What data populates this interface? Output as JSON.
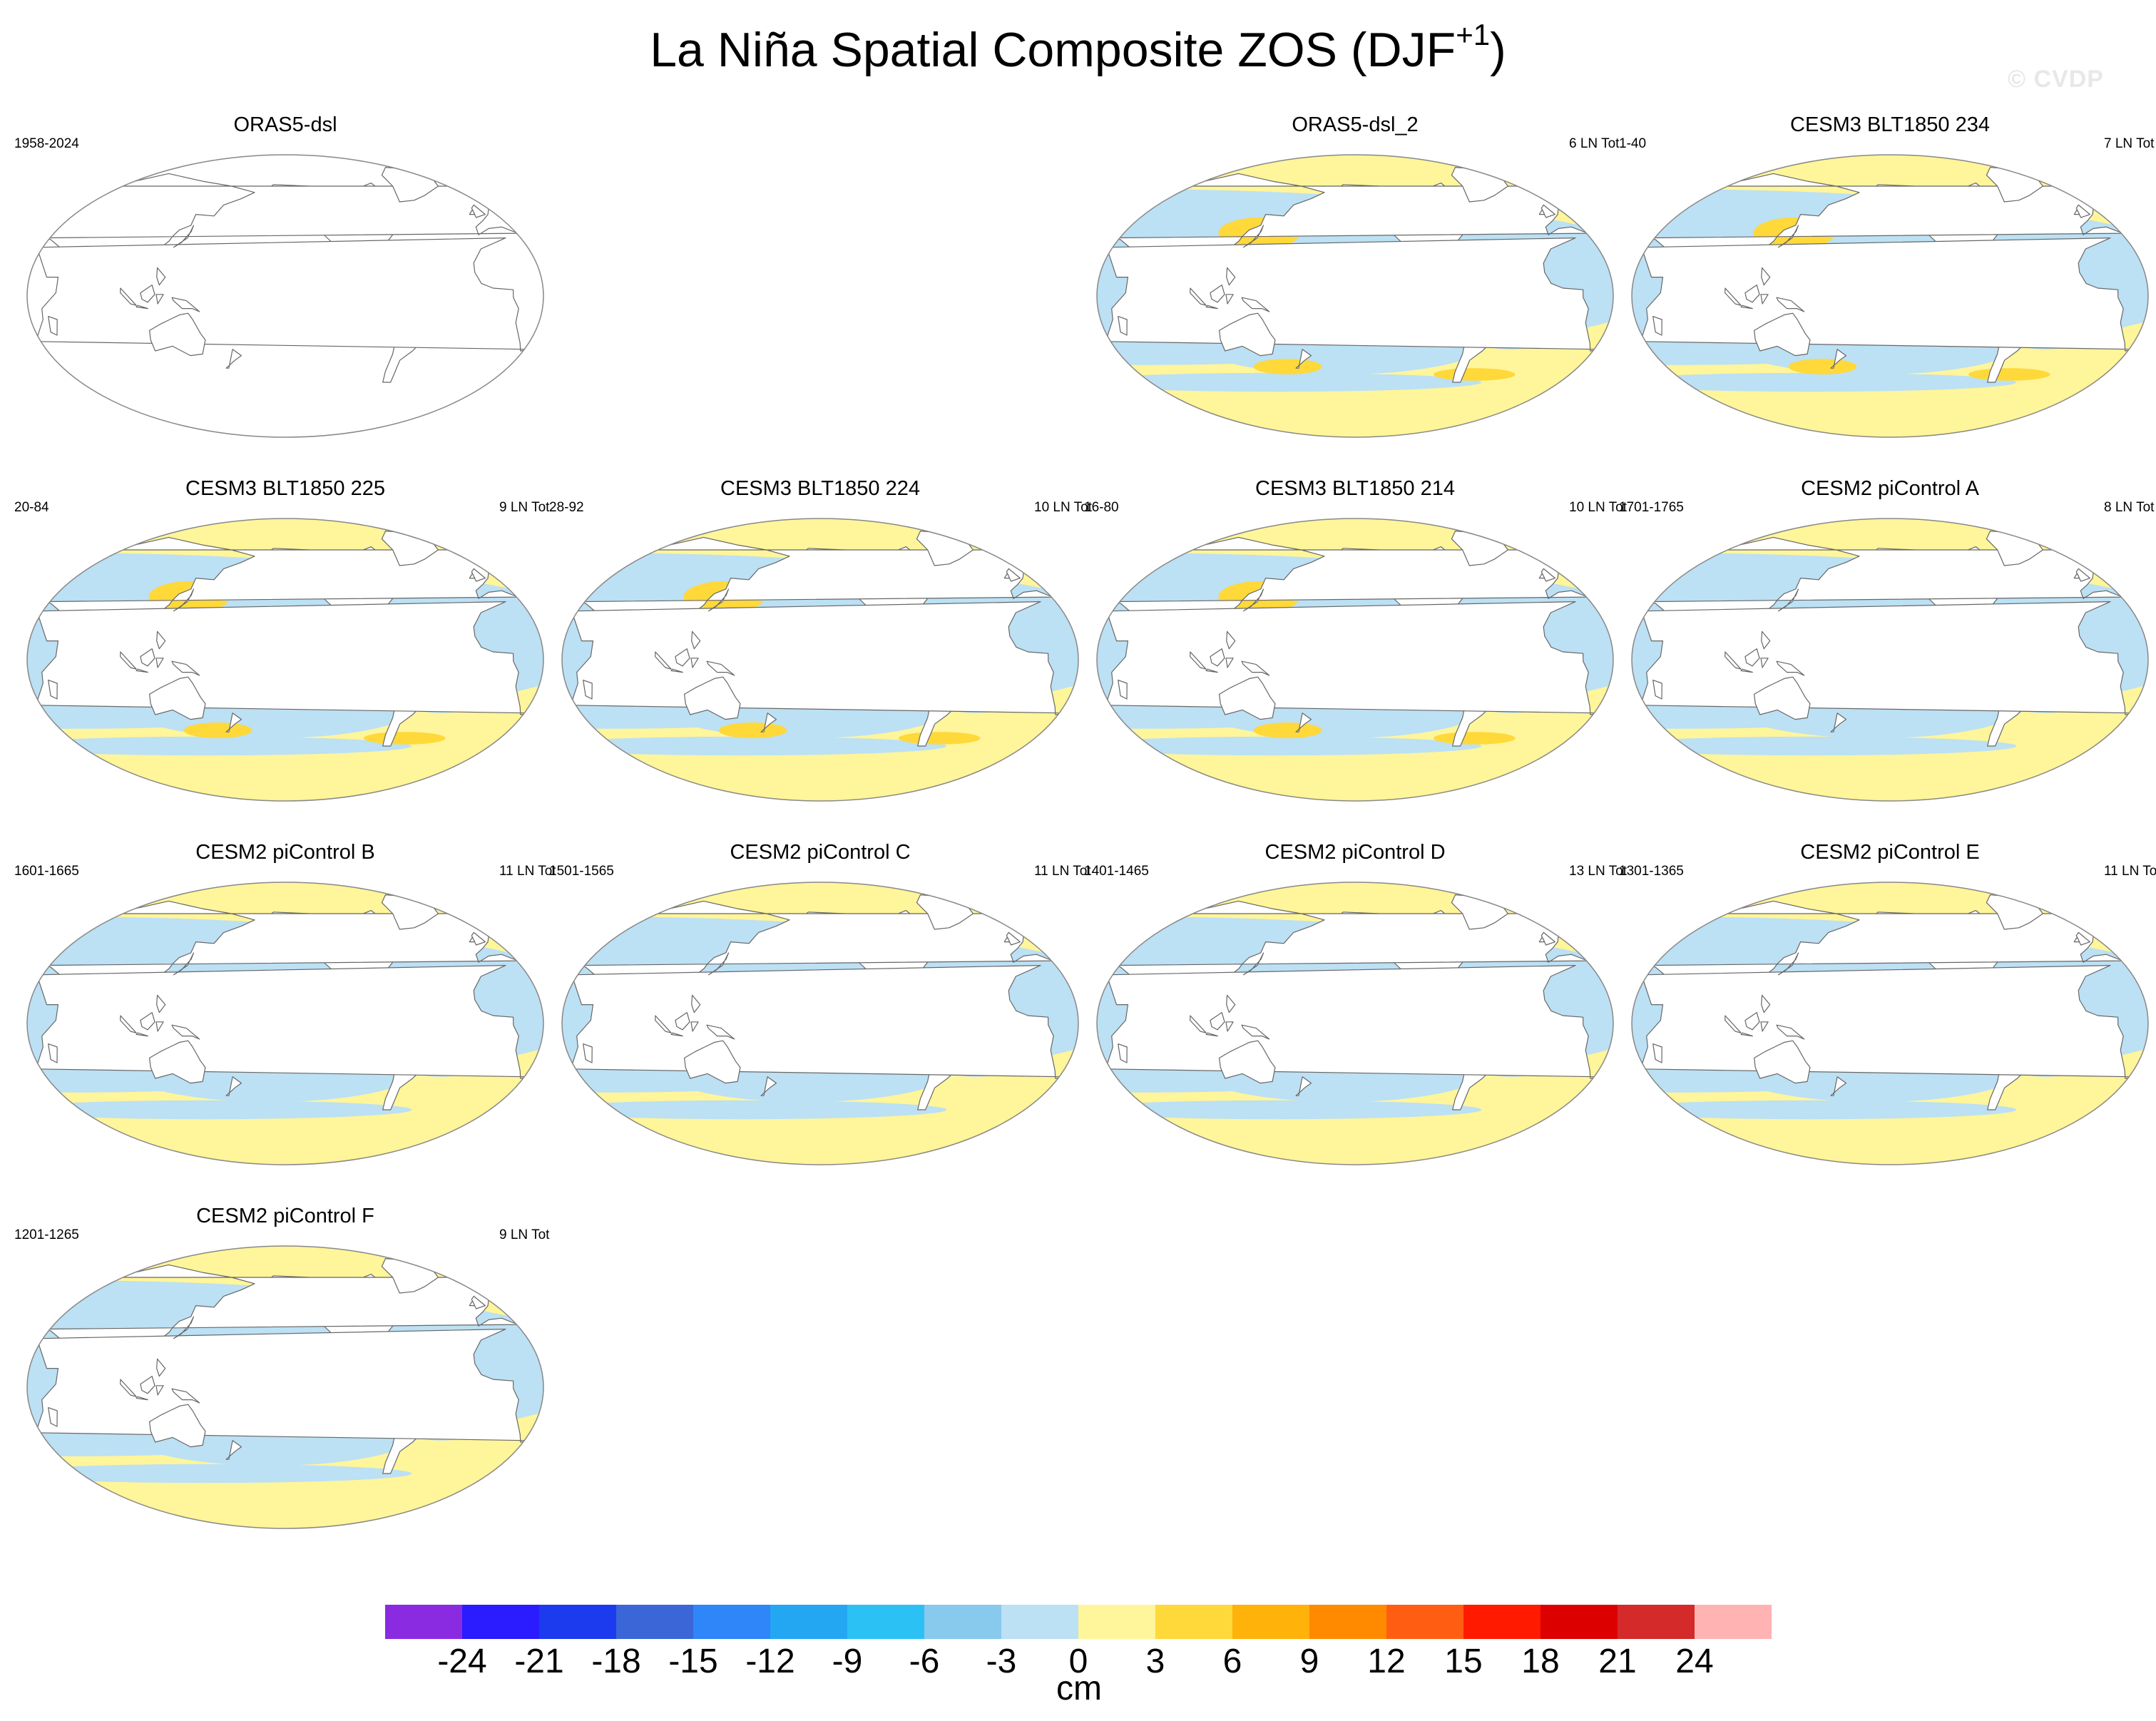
{
  "figure": {
    "title": "La Niña Spatial Composite ZOS (DJF",
    "title_sup": "+1",
    "title_close": ")",
    "watermark": "© CVDP"
  },
  "panels": [
    {
      "title": "ORAS5-dsl",
      "years": "1958-2024",
      "count": "",
      "pattern": "blank"
    },
    {
      "title": "ORAS5-dsl_2",
      "years": "",
      "count": "6 LN Tot",
      "pattern": "obs"
    },
    {
      "title": "CESM3 BLT1850 234",
      "years": "1-40",
      "count": "7 LN Tot",
      "pattern": "noisy"
    },
    {
      "title": "CESM3 BLT1850 225",
      "years": "20-84",
      "count": "9 LN Tot",
      "pattern": "noisy"
    },
    {
      "title": "CESM3 BLT1850 224",
      "years": "28-92",
      "count": "10 LN Tot",
      "pattern": "noisy"
    },
    {
      "title": "CESM3 BLT1850 214",
      "years": "16-80",
      "count": "10 LN Tot",
      "pattern": "noisy"
    },
    {
      "title": "CESM2 piControl A",
      "years": "1701-1765",
      "count": "8 LN Tot",
      "pattern": "smooth"
    },
    {
      "title": "CESM2 piControl B",
      "years": "1601-1665",
      "count": "11 LN Tot",
      "pattern": "smooth"
    },
    {
      "title": "CESM2 piControl C",
      "years": "1501-1565",
      "count": "11 LN Tot",
      "pattern": "smooth"
    },
    {
      "title": "CESM2 piControl D",
      "years": "1401-1465",
      "count": "13 LN Tot",
      "pattern": "smooth"
    },
    {
      "title": "CESM2 piControl E",
      "years": "1301-1365",
      "count": "11 LN Tot",
      "pattern": "smooth"
    },
    {
      "title": "CESM2 piControl F",
      "years": "1201-1265",
      "count": "9 LN Tot",
      "pattern": "smooth"
    }
  ],
  "colorbar": {
    "units": "cm",
    "colors": [
      "#8a2be2",
      "#2b1bff",
      "#1c3aee",
      "#3a66d8",
      "#2e86f8",
      "#23a7f2",
      "#2bc1f4",
      "#88c9ee",
      "#bce0f4",
      "#fff59a",
      "#ffd83a",
      "#ffb20a",
      "#ff8a00",
      "#ff5e12",
      "#ff1a00",
      "#dd0000",
      "#d42a2a",
      "#ffb3b3"
    ],
    "labels": [
      "-24",
      "-21",
      "-18",
      "-15",
      "-12",
      "-9",
      "-6",
      "-3",
      "0",
      "3",
      "6",
      "9",
      "12",
      "15",
      "18",
      "21",
      "24"
    ]
  }
}
